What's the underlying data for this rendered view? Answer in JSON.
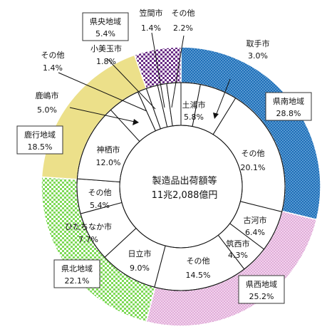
{
  "chart_data": {
    "type": "pie",
    "title": "",
    "center_label": [
      "製造品出荷額等",
      "11兆2,088億円"
    ],
    "outer_ring": [
      {
        "name": "県南地域",
        "value": 28.8,
        "label": "28.8%",
        "color": "#1f6fb8",
        "pattern": "dots-blue"
      },
      {
        "name": "県西地域",
        "value": 25.2,
        "label": "25.2%",
        "color": "#e7b6e0",
        "pattern": "dots-pink"
      },
      {
        "name": "県北地域",
        "value": 22.1,
        "label": "22.1%",
        "color": "#8ee35a",
        "pattern": "checker-green"
      },
      {
        "name": "鹿行地域",
        "value": 18.5,
        "label": "18.5%",
        "color": "#ece08a",
        "pattern": "solid-yellow"
      },
      {
        "name": "県央地域",
        "value": 5.4,
        "label": "5.4%",
        "color": "#6a2d86",
        "pattern": "checker-purple"
      }
    ],
    "inner_ring": [
      {
        "name": "取手市",
        "value": 3.0,
        "label": "3.0%"
      },
      {
        "name": "土浦市",
        "value": 5.8,
        "label": "5.8%"
      },
      {
        "name": "その他",
        "value": 20.1,
        "label": "20.1%"
      },
      {
        "name": "古河市",
        "value": 6.4,
        "label": "6.4%"
      },
      {
        "name": "筑西市",
        "value": 4.3,
        "label": "4.3%"
      },
      {
        "name": "その他",
        "value": 14.5,
        "label": "14.5%"
      },
      {
        "name": "日立市",
        "value": 9.0,
        "label": "9.0%"
      },
      {
        "name": "ひたちなか市",
        "value": 7.7,
        "label": "7.7%"
      },
      {
        "name": "その他",
        "value": 5.4,
        "label": "5.4%"
      },
      {
        "name": "神栖市",
        "value": 12.0,
        "label": "12.0%"
      },
      {
        "name": "鹿嶋市",
        "value": 5.0,
        "label": "5.0%"
      },
      {
        "name": "その他",
        "value": 1.4,
        "label": "1.4%"
      },
      {
        "name": "小美玉市",
        "value": 1.8,
        "label": "1.8%"
      },
      {
        "name": "笠間市",
        "value": 1.4,
        "label": "1.4%"
      },
      {
        "name": "その他",
        "value": 2.2,
        "label": "2.2%"
      }
    ]
  }
}
